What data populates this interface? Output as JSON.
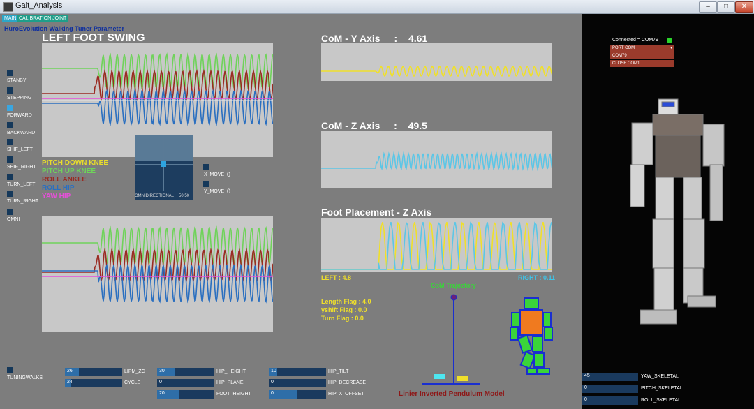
{
  "window": {
    "title": "Gait_Analysis",
    "minimize": "–",
    "maximize": "□",
    "close": "✕"
  },
  "tabs": {
    "main": "MAIN",
    "calibration": "CALIBRATION JOINT"
  },
  "subtitle": "HuroEvolution Walking Tuner Parameter",
  "left_foot": {
    "title": "LEFT FOOT SWING"
  },
  "modes": [
    "STANBY",
    "STEPPING",
    "FORWARD",
    "BACKWARD",
    "SHIF_LEFT",
    "SHIF_RIGHT",
    "TURN_LEFT",
    "TURN_RIGHT",
    "OMNI"
  ],
  "legend": [
    {
      "label": "PITCH DOWN KNEE",
      "color": "#e8dc2c"
    },
    {
      "label": "PITCH UP KNEE",
      "color": "#6fd35a"
    },
    {
      "label": "ROLL ANKLE",
      "color": "#9a2b22"
    },
    {
      "label": "ROLL HIP",
      "color": "#2a6fc0"
    },
    {
      "label": "YAW HIP",
      "color": "#e64fd9"
    }
  ],
  "omni": {
    "label": "OMNIDIRECTIONAL",
    "value": "50.50"
  },
  "move": {
    "x_label": "X_MOVE",
    "x_value": "0",
    "y_label": "Y_MOVE",
    "y_value": "0"
  },
  "com_y": {
    "label": "CoM - Y Axis",
    "colon": ":",
    "value": "4.61"
  },
  "com_z": {
    "label": "CoM - Z Axis",
    "colon": ":",
    "value": "49.5"
  },
  "foot_placement": {
    "label": "Foot Placement - Z Axis",
    "left": "LEFT : 4.8",
    "right": "RIGHT : 0.11"
  },
  "com_trajectory": "CoM Trajectory",
  "flags": [
    "Length Flag : 4.0",
    "yshift Flag : 0.0",
    "Turn Flag : 0.0"
  ],
  "lipm_model": "Linier Inverted Pendulum Model",
  "tuning": "TUNINGWALKS",
  "sliders": [
    {
      "value": "26",
      "label": "LIPM_ZC",
      "fill_pct": 24
    },
    {
      "value": "24",
      "label": "CYCLE",
      "fill_pct": 10
    },
    {
      "value": "30",
      "label": "HIP_HEIGHT",
      "fill_pct": 30
    },
    {
      "value": "0",
      "label": "HIP_PLANE",
      "fill_pct": 0
    },
    {
      "value": "20",
      "label": "FOOT_HEIGHT",
      "fill_pct": 38
    },
    {
      "value": "10",
      "label": "HIP_TILT",
      "fill_pct": 15
    },
    {
      "value": "0",
      "label": "HIP_DECREASE",
      "fill_pct": 0
    },
    {
      "value": "0",
      "label": "HIP_X_OFFSET",
      "fill_pct": 50
    }
  ],
  "connection": {
    "status": "Connected = COM79",
    "port_select": "PORT COM",
    "port": "COM79",
    "close": "CLOSE COM1"
  },
  "skeletal": [
    {
      "value": "45",
      "label": "YAW_SKELETAL"
    },
    {
      "value": "0",
      "label": "PITCH_SKELETAL"
    },
    {
      "value": "0",
      "label": "ROLL_SKELETAL"
    }
  ],
  "colors": {
    "yellow": "#f0e02a",
    "cyan": "#5cc6e6",
    "green": "#3ad43a"
  }
}
